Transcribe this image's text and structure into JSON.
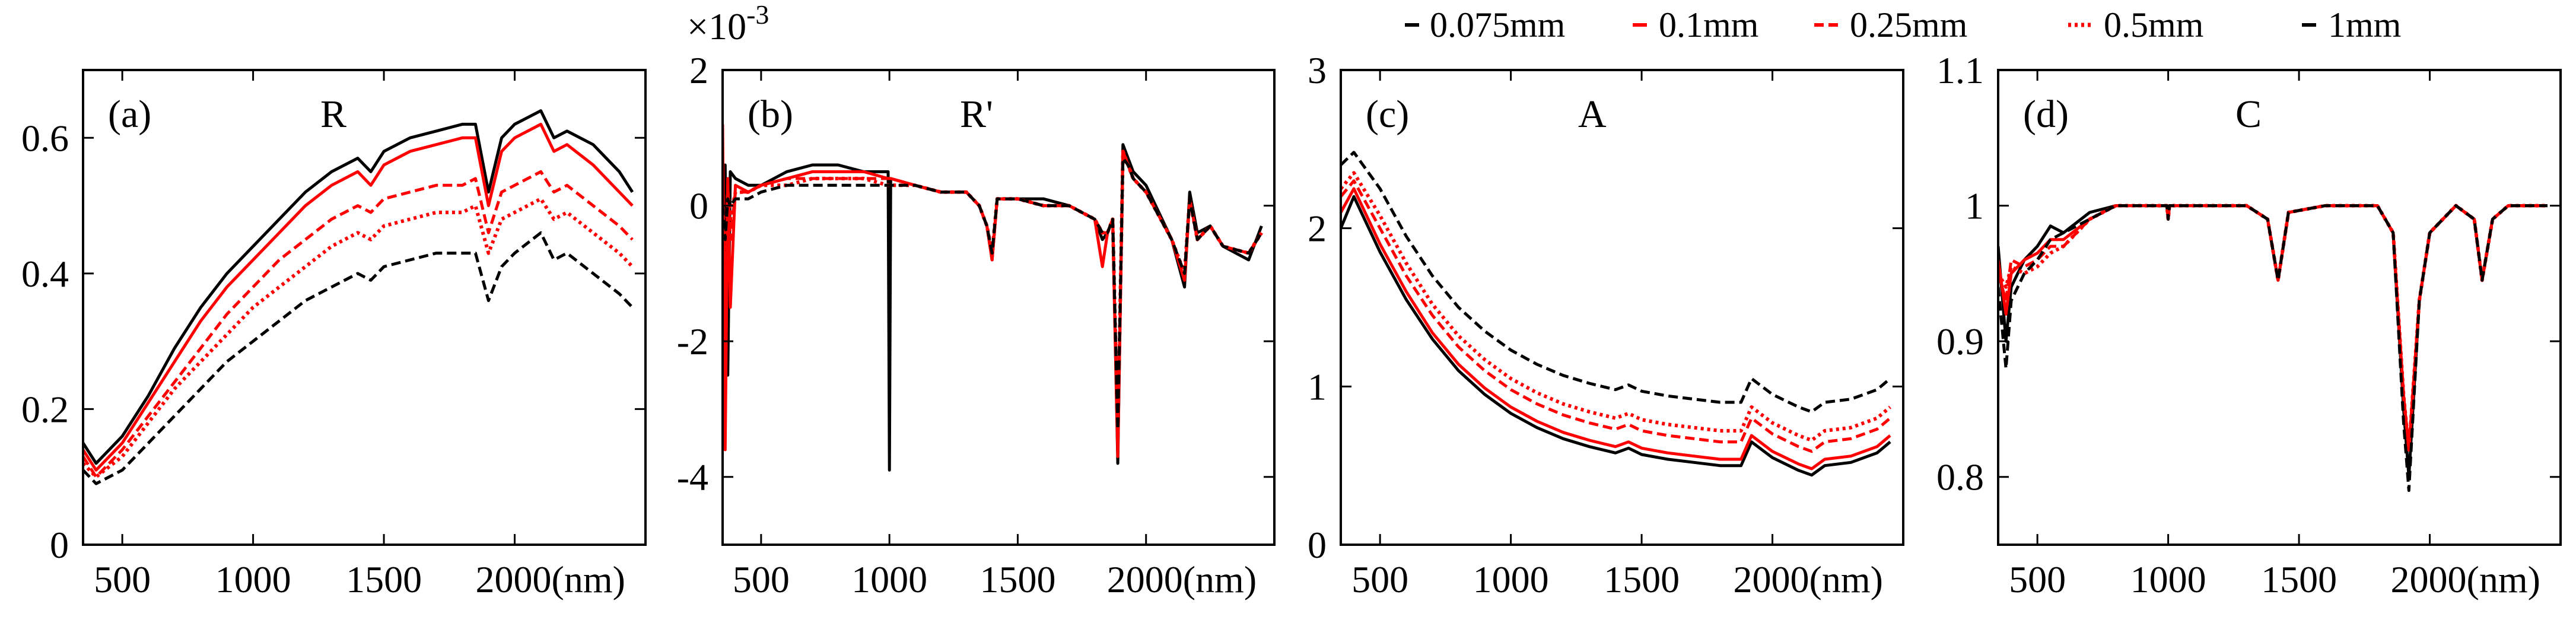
{
  "figure": {
    "x_unit_label": "(nm)"
  },
  "legend": [
    {
      "label": "0.075mm",
      "color": "#000000",
      "style": "solid"
    },
    {
      "label": "0.1mm",
      "color": "#ff0000",
      "style": "solid"
    },
    {
      "label": "0.25mm",
      "color": "#ff0000",
      "style": "dashed"
    },
    {
      "label": "0.5mm",
      "color": "#ff0000",
      "style": "dotted"
    },
    {
      "label": "1mm",
      "color": "#000000",
      "style": "dashed"
    }
  ],
  "chart_data": [
    {
      "type": "line",
      "panel": "(a)",
      "title": "R",
      "xlim": [
        350,
        2500
      ],
      "ylim": [
        0,
        0.7
      ],
      "xticks": [
        500,
        1000,
        1500,
        2000
      ],
      "xtick_labels": [
        "500",
        "1000",
        "1500",
        "2000(nm)"
      ],
      "yticks": [
        0,
        0.2,
        0.4,
        0.6
      ],
      "ytick_labels": [
        "0",
        "0.2",
        "0.4",
        "0.6"
      ],
      "x": [
        350,
        400,
        500,
        600,
        700,
        800,
        900,
        1000,
        1100,
        1200,
        1300,
        1400,
        1450,
        1500,
        1600,
        1700,
        1800,
        1850,
        1900,
        1950,
        2000,
        2100,
        2150,
        2200,
        2300,
        2400,
        2450
      ],
      "series": [
        {
          "name": "0.075mm",
          "color": "#000000",
          "style": "solid",
          "values": [
            0.15,
            0.12,
            0.16,
            0.22,
            0.29,
            0.35,
            0.4,
            0.44,
            0.48,
            0.52,
            0.55,
            0.57,
            0.55,
            0.58,
            0.6,
            0.61,
            0.62,
            0.62,
            0.52,
            0.6,
            0.62,
            0.64,
            0.6,
            0.61,
            0.59,
            0.55,
            0.52
          ]
        },
        {
          "name": "0.1mm",
          "color": "#ff0000",
          "style": "solid",
          "values": [
            0.14,
            0.11,
            0.15,
            0.21,
            0.27,
            0.33,
            0.38,
            0.42,
            0.46,
            0.5,
            0.53,
            0.55,
            0.53,
            0.56,
            0.58,
            0.59,
            0.6,
            0.6,
            0.5,
            0.58,
            0.6,
            0.62,
            0.58,
            0.59,
            0.56,
            0.52,
            0.5
          ]
        },
        {
          "name": "0.25mm",
          "color": "#ff0000",
          "style": "dashed",
          "values": [
            0.13,
            0.1,
            0.14,
            0.19,
            0.24,
            0.29,
            0.34,
            0.38,
            0.42,
            0.45,
            0.48,
            0.5,
            0.49,
            0.51,
            0.52,
            0.53,
            0.53,
            0.54,
            0.46,
            0.52,
            0.53,
            0.55,
            0.52,
            0.53,
            0.5,
            0.47,
            0.45
          ]
        },
        {
          "name": "0.5mm",
          "color": "#ff0000",
          "style": "dotted",
          "values": [
            0.12,
            0.1,
            0.13,
            0.18,
            0.23,
            0.27,
            0.31,
            0.35,
            0.38,
            0.41,
            0.44,
            0.46,
            0.45,
            0.47,
            0.48,
            0.49,
            0.49,
            0.5,
            0.43,
            0.48,
            0.49,
            0.51,
            0.48,
            0.49,
            0.46,
            0.43,
            0.41
          ]
        },
        {
          "name": "1mm",
          "color": "#000000",
          "style": "dashed",
          "values": [
            0.11,
            0.09,
            0.11,
            0.15,
            0.19,
            0.23,
            0.27,
            0.3,
            0.33,
            0.36,
            0.38,
            0.4,
            0.39,
            0.41,
            0.42,
            0.43,
            0.43,
            0.43,
            0.36,
            0.41,
            0.43,
            0.46,
            0.42,
            0.43,
            0.4,
            0.37,
            0.35
          ]
        }
      ]
    },
    {
      "type": "line",
      "panel": "(b)",
      "title": "R'",
      "scale_label": "×10",
      "scale_exponent": "-3",
      "xlim": [
        350,
        2500
      ],
      "ylim": [
        -5,
        2
      ],
      "xticks": [
        500,
        1000,
        1500,
        2000
      ],
      "xtick_labels": [
        "500",
        "1000",
        "1500",
        "2000(nm)"
      ],
      "yticks": [
        -4,
        -2,
        0,
        2
      ],
      "ytick_labels": [
        "-4",
        "-2",
        "0",
        "2"
      ],
      "x": [
        350,
        360,
        370,
        380,
        400,
        450,
        500,
        600,
        700,
        800,
        900,
        995,
        1000,
        1005,
        1100,
        1200,
        1300,
        1350,
        1380,
        1400,
        1420,
        1450,
        1500,
        1600,
        1700,
        1800,
        1830,
        1850,
        1870,
        1890,
        1910,
        1930,
        1950,
        2000,
        2100,
        2150,
        2170,
        2200,
        2250,
        2300,
        2400,
        2450
      ],
      "series": [
        {
          "name": "0.075mm",
          "color": "#000000",
          "style": "solid",
          "values": [
            -3.0,
            0.6,
            -2.5,
            0.5,
            0.4,
            0.3,
            0.3,
            0.5,
            0.6,
            0.6,
            0.5,
            0.5,
            -3.9,
            0.4,
            0.3,
            0.2,
            0.2,
            0.0,
            -0.3,
            -0.8,
            0.1,
            0.1,
            0.1,
            0.1,
            0.0,
            -0.2,
            -0.5,
            -0.4,
            -0.2,
            -3.8,
            0.9,
            0.7,
            0.5,
            0.3,
            -0.5,
            -1.2,
            0.2,
            -0.4,
            -0.3,
            -0.6,
            -0.8,
            -0.3
          ]
        },
        {
          "name": "0.1mm",
          "color": "#ff0000",
          "style": "solid",
          "values": [
            1.2,
            -3.6,
            0.4,
            -1.5,
            0.3,
            0.2,
            0.3,
            0.4,
            0.5,
            0.5,
            0.5,
            0.4,
            0.4,
            0.4,
            0.3,
            0.2,
            0.2,
            0.0,
            -0.3,
            -0.8,
            0.1,
            0.1,
            0.1,
            0.0,
            0.0,
            -0.2,
            -0.9,
            -0.4,
            -0.2,
            -3.7,
            0.8,
            0.6,
            0.4,
            0.2,
            -0.5,
            -1.1,
            0.1,
            -0.5,
            -0.3,
            -0.6,
            -0.7,
            -0.4
          ]
        },
        {
          "name": "0.25mm",
          "color": "#ff0000",
          "style": "dashed",
          "values": [
            0.2,
            -2.0,
            0.3,
            -0.5,
            0.2,
            0.2,
            0.3,
            0.4,
            0.4,
            0.4,
            0.4,
            0.4,
            0.4,
            0.4,
            0.3,
            0.2,
            0.2,
            0.0,
            -0.3,
            -0.8,
            0.1,
            0.1,
            0.1,
            0.0,
            0.0,
            -0.2,
            -0.4,
            -0.4,
            -0.2,
            -3.5,
            0.8,
            0.6,
            0.4,
            0.2,
            -0.5,
            -1.1,
            0.1,
            -0.5,
            -0.3,
            -0.6,
            -0.7,
            -0.4
          ]
        },
        {
          "name": "0.5mm",
          "color": "#ff0000",
          "style": "dotted",
          "values": [
            0.1,
            -1.0,
            0.2,
            -0.2,
            0.2,
            0.2,
            0.3,
            0.3,
            0.4,
            0.4,
            0.4,
            0.3,
            0.3,
            0.3,
            0.3,
            0.2,
            0.2,
            0.0,
            -0.3,
            -0.7,
            0.1,
            0.1,
            0.1,
            0.0,
            0.0,
            -0.2,
            -0.4,
            -0.4,
            -0.2,
            -3.4,
            0.8,
            0.6,
            0.4,
            0.2,
            -0.5,
            -1.0,
            0.1,
            -0.5,
            -0.3,
            -0.6,
            -0.7,
            -0.4
          ]
        },
        {
          "name": "1mm",
          "color": "#000000",
          "style": "dashed",
          "values": [
            0.0,
            -0.5,
            0.1,
            0.0,
            0.1,
            0.1,
            0.2,
            0.3,
            0.3,
            0.3,
            0.3,
            0.3,
            0.3,
            0.3,
            0.3,
            0.2,
            0.2,
            0.0,
            -0.3,
            -0.7,
            0.1,
            0.1,
            0.1,
            0.0,
            0.0,
            -0.2,
            -0.4,
            -0.4,
            -0.2,
            -3.3,
            0.7,
            0.6,
            0.4,
            0.2,
            -0.5,
            -1.0,
            0.1,
            -0.5,
            -0.3,
            -0.6,
            -0.7,
            -0.4
          ]
        }
      ]
    },
    {
      "type": "line",
      "panel": "(c)",
      "title": "A",
      "xlim": [
        350,
        2500
      ],
      "ylim": [
        0,
        3
      ],
      "xticks": [
        500,
        1000,
        1500,
        2000
      ],
      "xtick_labels": [
        "500",
        "1000",
        "1500",
        "2000(nm)"
      ],
      "yticks": [
        0,
        1,
        2,
        3
      ],
      "ytick_labels": [
        "0",
        "1",
        "2",
        "3"
      ],
      "x": [
        350,
        400,
        500,
        600,
        700,
        800,
        900,
        1000,
        1100,
        1200,
        1300,
        1400,
        1450,
        1500,
        1600,
        1700,
        1800,
        1880,
        1920,
        2000,
        2100,
        2150,
        2200,
        2300,
        2400,
        2450
      ],
      "series": [
        {
          "name": "0.075mm",
          "color": "#000000",
          "style": "solid",
          "values": [
            2.0,
            2.2,
            1.85,
            1.55,
            1.3,
            1.1,
            0.95,
            0.83,
            0.74,
            0.67,
            0.62,
            0.58,
            0.61,
            0.57,
            0.54,
            0.52,
            0.5,
            0.5,
            0.65,
            0.55,
            0.47,
            0.44,
            0.5,
            0.52,
            0.58,
            0.65
          ]
        },
        {
          "name": "0.1mm",
          "color": "#ff0000",
          "style": "solid",
          "values": [
            2.1,
            2.25,
            1.9,
            1.6,
            1.34,
            1.14,
            0.99,
            0.87,
            0.78,
            0.71,
            0.66,
            0.62,
            0.65,
            0.61,
            0.58,
            0.56,
            0.54,
            0.54,
            0.69,
            0.59,
            0.51,
            0.48,
            0.54,
            0.56,
            0.62,
            0.69
          ]
        },
        {
          "name": "0.25mm",
          "color": "#ff0000",
          "style": "dashed",
          "values": [
            2.2,
            2.3,
            2.0,
            1.7,
            1.45,
            1.25,
            1.1,
            0.98,
            0.89,
            0.82,
            0.77,
            0.73,
            0.76,
            0.72,
            0.69,
            0.67,
            0.65,
            0.65,
            0.8,
            0.7,
            0.62,
            0.59,
            0.65,
            0.67,
            0.73,
            0.8
          ]
        },
        {
          "name": "0.5mm",
          "color": "#ff0000",
          "style": "dotted",
          "values": [
            2.25,
            2.35,
            2.08,
            1.78,
            1.52,
            1.32,
            1.17,
            1.05,
            0.96,
            0.89,
            0.84,
            0.8,
            0.83,
            0.79,
            0.76,
            0.74,
            0.72,
            0.72,
            0.87,
            0.77,
            0.69,
            0.66,
            0.72,
            0.74,
            0.8,
            0.87
          ]
        },
        {
          "name": "1mm",
          "color": "#000000",
          "style": "dashed",
          "values": [
            2.4,
            2.48,
            2.25,
            1.95,
            1.7,
            1.5,
            1.35,
            1.23,
            1.14,
            1.07,
            1.02,
            0.98,
            1.01,
            0.97,
            0.94,
            0.92,
            0.9,
            0.9,
            1.05,
            0.95,
            0.87,
            0.84,
            0.9,
            0.92,
            0.98,
            1.05
          ]
        }
      ]
    },
    {
      "type": "line",
      "panel": "(d)",
      "title": "C",
      "xlim": [
        350,
        2500
      ],
      "ylim": [
        0.75,
        1.1
      ],
      "xticks": [
        500,
        1000,
        1500,
        2000
      ],
      "xtick_labels": [
        "500",
        "1000",
        "1500",
        "2000(nm)"
      ],
      "yticks": [
        0.8,
        0.9,
        1.0,
        1.1
      ],
      "ytick_labels": [
        "0.8",
        "0.9",
        "1",
        "1.1"
      ],
      "x": [
        350,
        380,
        400,
        450,
        500,
        550,
        600,
        700,
        800,
        900,
        995,
        1000,
        1005,
        1100,
        1300,
        1380,
        1420,
        1460,
        1600,
        1800,
        1860,
        1900,
        1920,
        1960,
        2000,
        2100,
        2170,
        2200,
        2240,
        2300,
        2400,
        2450
      ],
      "series": [
        {
          "name": "0.075mm",
          "color": "#000000",
          "style": "solid",
          "values": [
            0.97,
            0.9,
            0.94,
            0.96,
            0.97,
            0.985,
            0.98,
            0.995,
            1.0,
            1.0,
            1.0,
            0.99,
            1.0,
            1.0,
            1.0,
            0.99,
            0.945,
            0.995,
            1.0,
            1.0,
            0.98,
            0.85,
            0.8,
            0.93,
            0.98,
            1.0,
            0.99,
            0.945,
            0.99,
            1.0,
            1.0,
            1.0
          ]
        },
        {
          "name": "0.1mm",
          "color": "#ff0000",
          "style": "solid",
          "values": [
            0.96,
            0.92,
            0.95,
            0.96,
            0.965,
            0.975,
            0.975,
            0.99,
            1.0,
            1.0,
            1.0,
            0.99,
            1.0,
            1.0,
            1.0,
            0.99,
            0.945,
            0.995,
            1.0,
            1.0,
            0.98,
            0.86,
            0.82,
            0.93,
            0.98,
            1.0,
            0.99,
            0.945,
            0.99,
            1.0,
            1.0,
            1.0
          ]
        },
        {
          "name": "0.25mm",
          "color": "#ff0000",
          "style": "dashed",
          "values": [
            0.95,
            0.93,
            0.96,
            0.955,
            0.96,
            0.97,
            0.97,
            0.99,
            1.0,
            1.0,
            1.0,
            0.99,
            1.0,
            1.0,
            1.0,
            0.99,
            0.945,
            0.995,
            1.0,
            1.0,
            0.98,
            0.86,
            0.82,
            0.93,
            0.98,
            1.0,
            0.99,
            0.945,
            0.99,
            1.0,
            1.0,
            1.0
          ]
        },
        {
          "name": "0.5mm",
          "color": "#ff0000",
          "style": "dotted",
          "values": [
            0.95,
            0.94,
            0.955,
            0.95,
            0.955,
            0.965,
            0.97,
            0.99,
            1.0,
            1.0,
            1.0,
            0.99,
            1.0,
            1.0,
            1.0,
            0.99,
            0.945,
            0.995,
            1.0,
            1.0,
            0.98,
            0.86,
            0.82,
            0.93,
            0.98,
            1.0,
            0.99,
            0.945,
            0.99,
            1.0,
            1.0,
            1.0
          ]
        },
        {
          "name": "1mm",
          "color": "#000000",
          "style": "dashed",
          "values": [
            0.94,
            0.88,
            0.93,
            0.95,
            0.96,
            0.975,
            0.98,
            0.99,
            1.0,
            1.0,
            1.0,
            0.99,
            1.0,
            1.0,
            1.0,
            0.99,
            0.945,
            0.995,
            1.0,
            1.0,
            0.98,
            0.84,
            0.79,
            0.93,
            0.98,
            1.0,
            0.99,
            0.945,
            0.99,
            1.0,
            1.0,
            1.0
          ]
        }
      ]
    }
  ]
}
